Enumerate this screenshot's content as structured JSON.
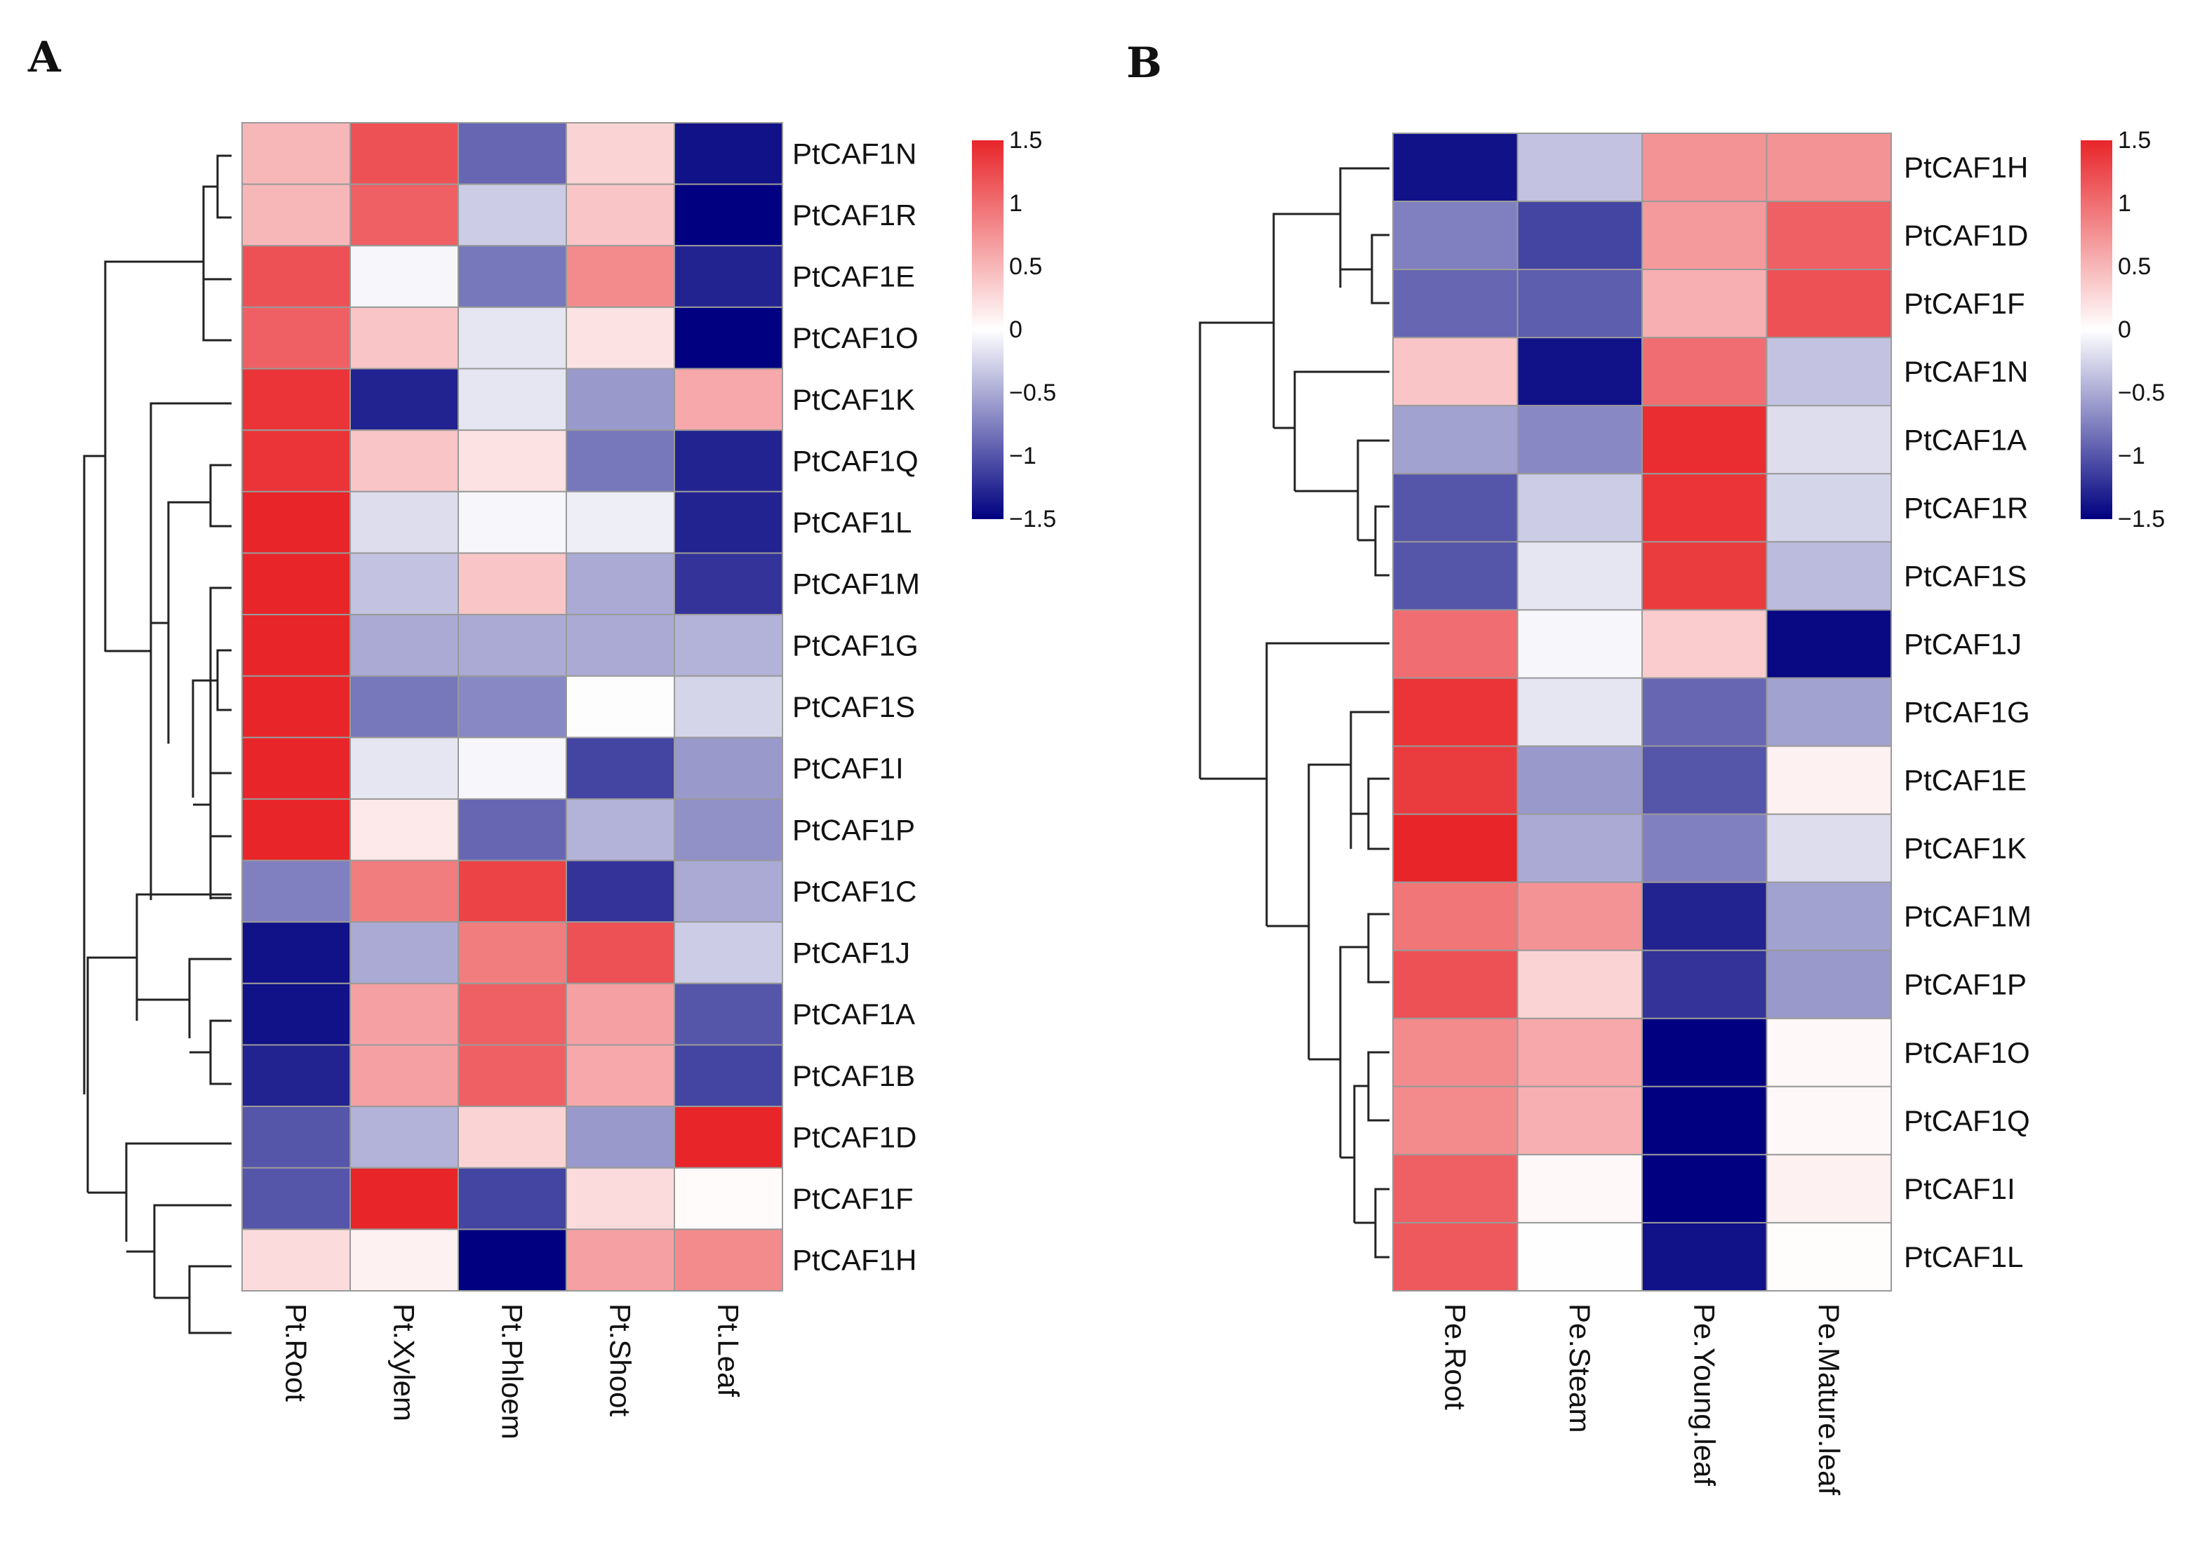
{
  "chart_data": [
    {
      "type": "heatmap",
      "panel": "A",
      "columns": [
        "Pt.Root",
        "Pt.Xylem",
        "Pt.Phloem",
        "Pt.Shoot",
        "Pt.Leaf"
      ],
      "rows": [
        "PtCAF1N",
        "PtCAF1R",
        "PtCAF1E",
        "PtCAF1O",
        "PtCAF1K",
        "PtCAF1Q",
        "PtCAF1L",
        "PtCAF1M",
        "PtCAF1G",
        "PtCAF1S",
        "PtCAF1I",
        "PtCAF1P",
        "PtCAF1C",
        "PtCAF1J",
        "PtCAF1A",
        "PtCAF1B",
        "PtCAF1D",
        "PtCAF1F",
        "PtCAF1H"
      ],
      "values": [
        [
          0.5,
          1.2,
          -0.9,
          0.3,
          -1.4
        ],
        [
          0.5,
          1.1,
          -0.3,
          0.4,
          -1.5
        ],
        [
          1.2,
          -0.05,
          -0.8,
          0.8,
          -1.3
        ],
        [
          1.1,
          0.4,
          -0.15,
          0.2,
          -1.5
        ],
        [
          1.4,
          -1.3,
          -0.15,
          -0.6,
          0.6
        ],
        [
          1.4,
          0.4,
          0.2,
          -0.8,
          -1.3
        ],
        [
          1.5,
          -0.2,
          -0.05,
          -0.1,
          -1.3
        ],
        [
          1.5,
          -0.35,
          0.4,
          -0.5,
          -1.2
        ],
        [
          1.5,
          -0.5,
          -0.5,
          -0.5,
          -0.45
        ],
        [
          1.5,
          -0.8,
          -0.7,
          -0.01,
          -0.25
        ],
        [
          1.5,
          -0.15,
          -0.05,
          -1.1,
          -0.6
        ],
        [
          1.5,
          0.15,
          -0.9,
          -0.45,
          -0.65
        ],
        [
          -0.75,
          0.9,
          1.3,
          -1.2,
          -0.5
        ],
        [
          -1.4,
          -0.5,
          0.9,
          1.2,
          -0.3
        ],
        [
          -1.4,
          0.65,
          1.1,
          0.65,
          -1.0
        ],
        [
          -1.3,
          0.65,
          1.1,
          0.6,
          -1.1
        ],
        [
          -1.0,
          -0.45,
          0.3,
          -0.6,
          1.5
        ],
        [
          -1.0,
          1.5,
          -1.1,
          0.25,
          0.03
        ],
        [
          0.25,
          0.1,
          -1.5,
          0.65,
          0.8
        ]
      ],
      "colorbar": {
        "ticks": [
          "1.5",
          "1",
          "0.5",
          "0",
          "−0.5",
          "−1",
          "−1.5"
        ],
        "range": [
          -1.5,
          1.5
        ],
        "colors": [
          "#000080",
          "#ffffff",
          "#e8262a"
        ]
      }
    },
    {
      "type": "heatmap",
      "panel": "B",
      "columns": [
        "Pe.Root",
        "Pe.Steam",
        "Pe.Young.leaf",
        "Pe.Mature.leaf"
      ],
      "rows": [
        "PtCAF1H",
        "PtCAF1D",
        "PtCAF1F",
        "PtCAF1N",
        "PtCAF1A",
        "PtCAF1R",
        "PtCAF1S",
        "PtCAF1J",
        "PtCAF1G",
        "PtCAF1E",
        "PtCAF1K",
        "PtCAF1M",
        "PtCAF1P",
        "PtCAF1O",
        "PtCAF1Q",
        "PtCAF1I",
        "PtCAF1L"
      ],
      "values": [
        [
          -1.4,
          -0.35,
          0.75,
          0.75
        ],
        [
          -0.75,
          -1.1,
          0.7,
          1.1
        ],
        [
          -0.9,
          -0.95,
          0.55,
          1.2
        ],
        [
          0.4,
          -1.4,
          1.0,
          -0.35
        ],
        [
          -0.55,
          -0.7,
          1.45,
          -0.2
        ],
        [
          -1.0,
          -0.3,
          1.4,
          -0.25
        ],
        [
          -1.0,
          -0.15,
          1.35,
          -0.4
        ],
        [
          1.0,
          -0.05,
          0.35,
          -1.45
        ],
        [
          1.4,
          -0.15,
          -0.9,
          -0.55
        ],
        [
          1.35,
          -0.6,
          -1.0,
          0.1
        ],
        [
          1.5,
          -0.5,
          -0.75,
          -0.2
        ],
        [
          0.95,
          0.75,
          -1.3,
          -0.55
        ],
        [
          1.2,
          0.3,
          -1.2,
          -0.6
        ],
        [
          0.8,
          0.6,
          -1.55,
          0.05
        ],
        [
          0.8,
          0.55,
          -1.55,
          0.05
        ],
        [
          1.1,
          0.05,
          -1.5,
          0.1
        ],
        [
          1.15,
          0.01,
          -1.4,
          0.02
        ]
      ],
      "colorbar": {
        "ticks": [
          "1.5",
          "1",
          "0.5",
          "0",
          "−0.5",
          "−1",
          "−1.5"
        ],
        "range": [
          -1.5,
          1.5
        ],
        "colors": [
          "#000080",
          "#ffffff",
          "#e8262a"
        ]
      }
    }
  ]
}
